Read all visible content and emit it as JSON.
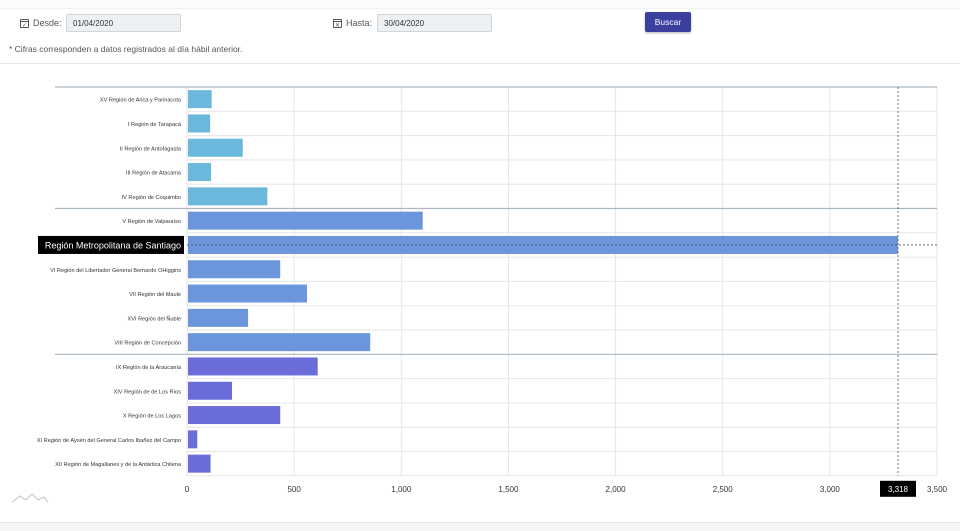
{
  "filters": {
    "desde_label": "Desde:",
    "desde_value": "01/04/2020",
    "hasta_label": "Hasta:",
    "hasta_value": "30/04/2020",
    "search_button": "Buscar"
  },
  "note": "* Cifras corresponden a datos registrados al día hábil anterior.",
  "colors": {
    "north": "#6ab8dc",
    "center": "#6b96dc",
    "south": "#6a6cd9",
    "button": "#3b3f9e"
  },
  "chart_data": {
    "type": "bar",
    "orientation": "horizontal",
    "categories": [
      "XV Región de Arica y Parinacota",
      "I Región de Tarapacá",
      "II Región de Antofagasta",
      "III Región de Atacama",
      "IV Región de Coquimbo",
      "V Región de Valparaíso",
      "Región Metropolitana de Santiago",
      "VI Región del Libertador General Bernardo OHiggins",
      "VII Región del Maule",
      "XVI Región del Ñuble",
      "VIII Región de Concepción",
      "IX Región de la Araucanía",
      "XIV Región de de Los Ríos",
      "X Región de Los Lagos",
      "XI Región de Aysén del General Carlos Ibañez del Campo",
      "XII Región de Magallanes y de la Antártica Chilena"
    ],
    "values": [
      115,
      108,
      260,
      112,
      375,
      1100,
      3318,
      435,
      560,
      285,
      855,
      610,
      210,
      435,
      48,
      110
    ],
    "groups": [
      "north",
      "north",
      "north",
      "north",
      "north",
      "center",
      "center",
      "center",
      "center",
      "center",
      "center",
      "south",
      "south",
      "south",
      "south",
      "south"
    ],
    "xlim": [
      0,
      3500
    ],
    "xticks": [
      "0",
      "500",
      "1,000",
      "1,500",
      "2,000",
      "2,500",
      "3,000",
      "3,500"
    ],
    "grid": true,
    "highlight": {
      "category": "Región Metropolitana de Santiago",
      "value_label": "3,318"
    }
  }
}
